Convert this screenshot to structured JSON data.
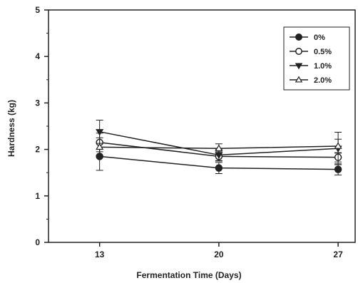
{
  "chart_data": {
    "type": "line",
    "xlabel": "Fermentation Time (Days)",
    "ylabel": "Hardness (kg)",
    "x": [
      13,
      20,
      27
    ],
    "xticks": [
      "13",
      "20",
      "27"
    ],
    "ylim": [
      0,
      5
    ],
    "yticks": [
      "0",
      "1",
      "2",
      "3",
      "4",
      "5"
    ],
    "grid": false,
    "legend_position": "top-right",
    "series": [
      {
        "name": "0%",
        "marker": "filled-circle",
        "values": [
          1.85,
          1.6,
          1.57
        ],
        "errors": [
          0.3,
          0.12,
          0.12
        ]
      },
      {
        "name": "0.5%",
        "marker": "open-circle",
        "values": [
          2.15,
          1.85,
          1.83
        ],
        "errors": [
          0.2,
          0.1,
          0.1
        ]
      },
      {
        "name": "1.0%",
        "marker": "filled-triangle-down",
        "values": [
          2.38,
          1.88,
          2.02
        ],
        "errors": [
          0.25,
          0.12,
          0.35
        ]
      },
      {
        "name": "2.0%",
        "marker": "open-triangle-up",
        "values": [
          2.05,
          2.02,
          2.07
        ],
        "errors": [
          0.2,
          0.1,
          0.15
        ]
      }
    ],
    "colors": {
      "line": "#222222",
      "marker_fill": "#222222",
      "open_fill": "#ffffff",
      "axis": "#222222"
    }
  }
}
